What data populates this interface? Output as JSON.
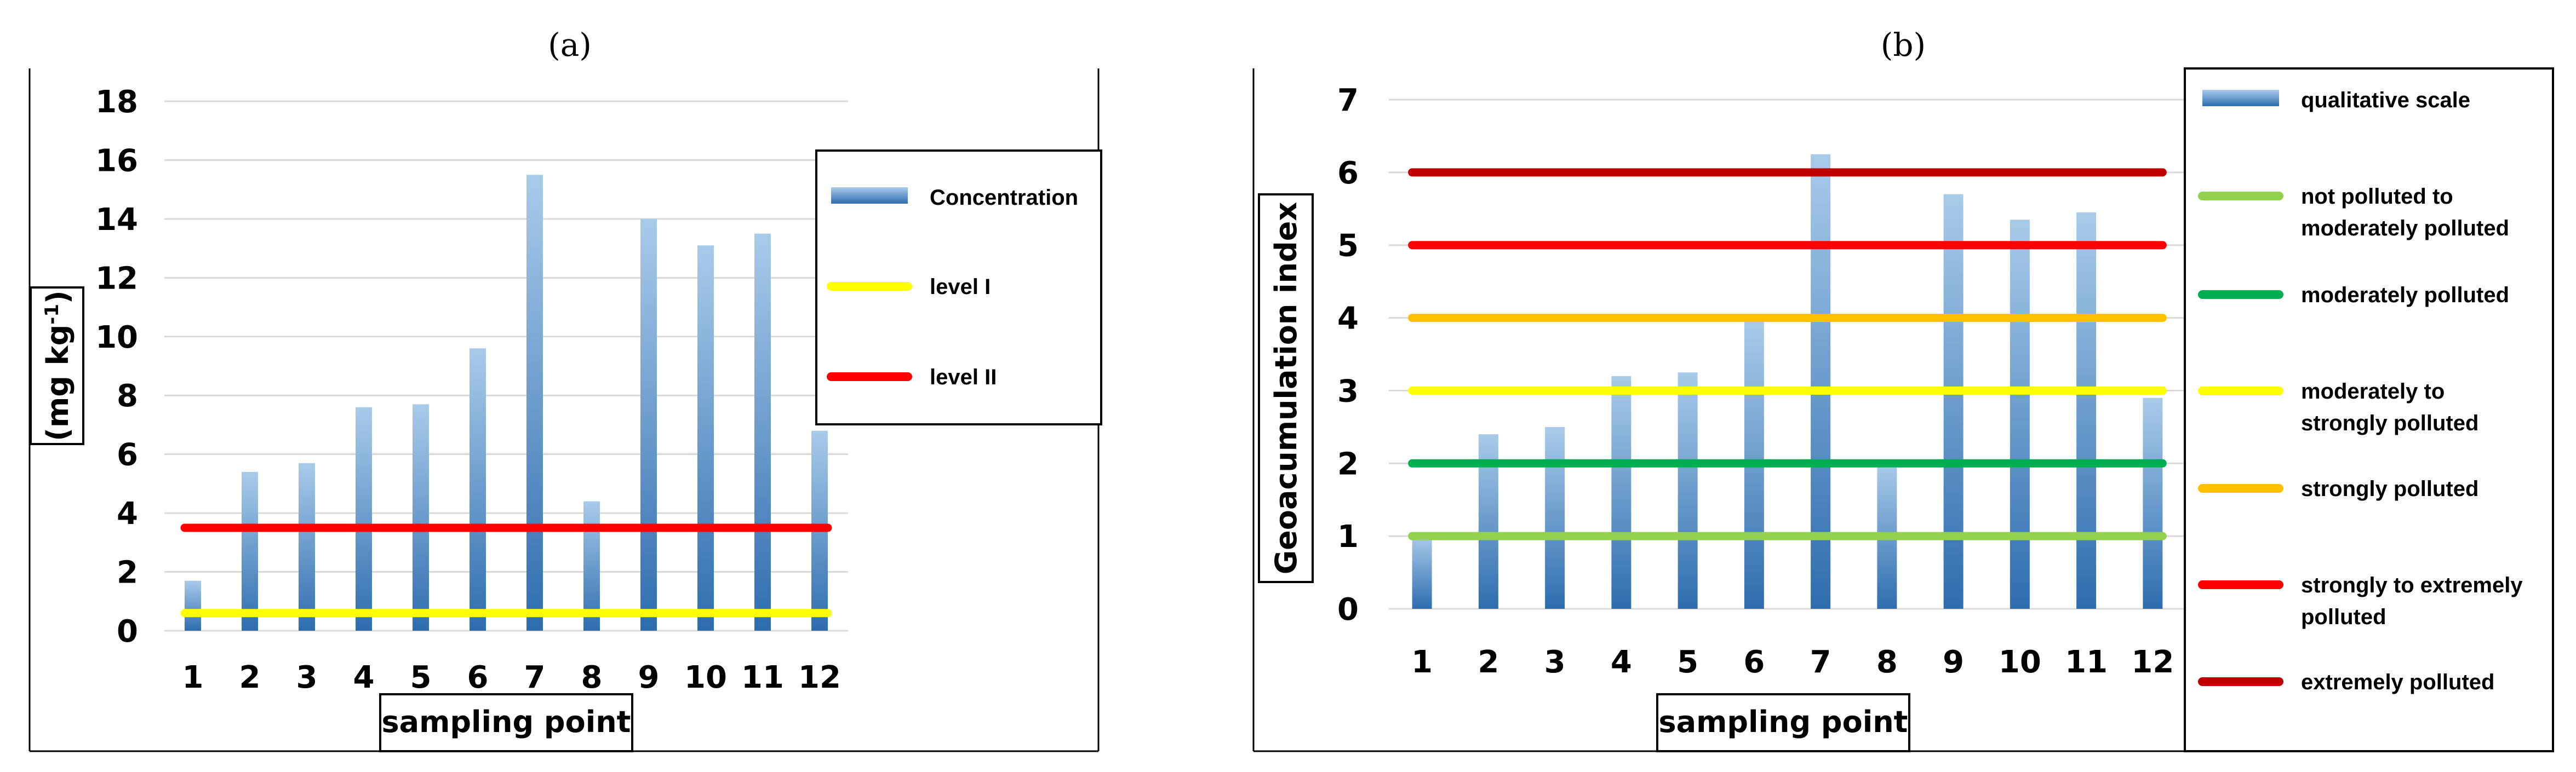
{
  "chart_data": [
    {
      "panel": "(a)",
      "type": "bar",
      "xlabel": "sampling point",
      "ylabel": "(mg kg",
      "ylabel_sup": "-1",
      "ylabel_end": ")",
      "categories": [
        "1",
        "2",
        "3",
        "4",
        "5",
        "6",
        "7",
        "8",
        "9",
        "10",
        "11",
        "12"
      ],
      "ylim": [
        0,
        18
      ],
      "yticks": [
        0,
        2,
        4,
        6,
        8,
        10,
        12,
        14,
        16,
        18
      ],
      "grid": true,
      "series": [
        {
          "name": "Concentration",
          "kind": "bar",
          "values": [
            1.7,
            5.4,
            5.7,
            7.6,
            7.7,
            9.6,
            15.5,
            4.4,
            14.0,
            13.1,
            13.5,
            6.8
          ]
        }
      ],
      "thresholds": [
        {
          "name": "level I",
          "value": 0.6,
          "color": "#FFFF00"
        },
        {
          "name": "level II",
          "value": 3.5,
          "color": "#FF0000"
        }
      ],
      "legend": [
        "Concentration",
        "level I",
        "level II"
      ],
      "legend_position": "right"
    },
    {
      "panel": "(b)",
      "type": "bar",
      "xlabel": "sampling point",
      "ylabel": "Geoacumulation index",
      "categories": [
        "1",
        "2",
        "3",
        "4",
        "5",
        "6",
        "7",
        "8",
        "9",
        "10",
        "11",
        "12"
      ],
      "ylim": [
        0,
        7
      ],
      "yticks": [
        0,
        1,
        2,
        3,
        4,
        5,
        6,
        7
      ],
      "grid": true,
      "series": [
        {
          "name": "qualitative scale",
          "kind": "bar",
          "values": [
            1.0,
            2.4,
            2.5,
            3.2,
            3.25,
            3.95,
            6.25,
            2.0,
            5.7,
            5.35,
            5.45,
            2.9
          ]
        }
      ],
      "thresholds": [
        {
          "name": "not polluted to moderately polluted",
          "lines": [
            "not polluted to",
            "moderately polluted"
          ],
          "value": 1,
          "color": "#92D050"
        },
        {
          "name": "moderately polluted",
          "lines": [
            "moderately polluted"
          ],
          "value": 2,
          "color": "#00B050"
        },
        {
          "name": "moderately to strongly polluted",
          "lines": [
            "moderately to",
            "strongly polluted"
          ],
          "value": 3,
          "color": "#FFFF00"
        },
        {
          "name": "strongly polluted",
          "lines": [
            "strongly polluted"
          ],
          "value": 4,
          "color": "#FFC000"
        },
        {
          "name": "strongly to extremely polluted",
          "lines": [
            "strongly to extremely",
            "polluted"
          ],
          "value": 5,
          "color": "#FF0000"
        },
        {
          "name": "extremely polluted",
          "lines": [
            "extremely polluted"
          ],
          "value": 6,
          "color": "#C00000"
        }
      ],
      "legend": [
        "qualitative scale",
        "not polluted to moderately polluted",
        "moderately polluted",
        "moderately to strongly polluted",
        "strongly polluted",
        "strongly to extremely polluted",
        "extremely polluted"
      ],
      "legend_position": "right"
    }
  ],
  "colors": {
    "bar_top": "#A9CBEA",
    "bar_bottom": "#2E6DAE",
    "grid": "#D9D9D9",
    "frame": "#000000"
  }
}
